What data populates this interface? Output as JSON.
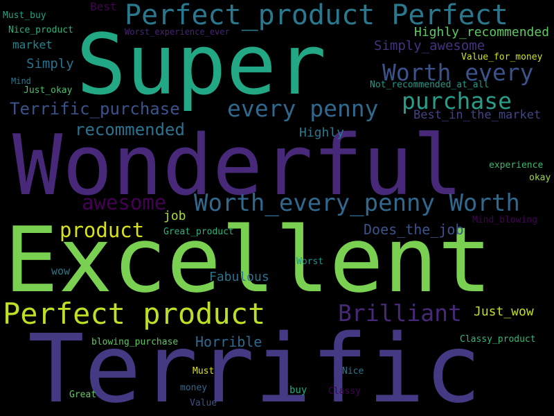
{
  "words": [
    {
      "text": "Super",
      "color": "#22a884"
    },
    {
      "text": "Wonderful",
      "color": "#482878"
    },
    {
      "text": "Excellent",
      "color": "#7ad151"
    },
    {
      "text": "Terrific",
      "color": "#443983"
    },
    {
      "text": "Perfect_product Perfect",
      "color": "#2a788e"
    },
    {
      "text": "Perfect product",
      "color": "#bddf26"
    },
    {
      "text": "Worth_every_penny Worth",
      "color": "#31688e"
    },
    {
      "text": "Worth every",
      "color": "#3b528b"
    },
    {
      "text": "every penny",
      "color": "#31688e"
    },
    {
      "text": "purchase",
      "color": "#2a9d8a"
    },
    {
      "text": "Brilliant",
      "color": "#482878"
    },
    {
      "text": "awesome",
      "color": "#440154"
    },
    {
      "text": "product",
      "color": "#d8e219"
    },
    {
      "text": "Terrific_purchase",
      "color": "#3b528b"
    },
    {
      "text": "recommended",
      "color": "#2c728e"
    },
    {
      "text": "Highly_recommended",
      "color": "#5ec962"
    },
    {
      "text": "Simply_awesome",
      "color": "#46327e"
    },
    {
      "text": "Best_in_the_market",
      "color": "#414487"
    },
    {
      "text": "Does_the_job",
      "color": "#3b528b"
    },
    {
      "text": "Just_wow",
      "color": "#c2df23"
    },
    {
      "text": "Horrible",
      "color": "#31688e"
    },
    {
      "text": "Fabulous",
      "color": "#2c728e"
    },
    {
      "text": "Highly",
      "color": "#2a788e"
    },
    {
      "text": "job",
      "color": "#aadc32"
    },
    {
      "text": "Simply",
      "color": "#2c728e"
    },
    {
      "text": "market",
      "color": "#25858e"
    },
    {
      "text": "Nice_product",
      "color": "#2db27d"
    },
    {
      "text": "Must_buy",
      "color": "#20a486"
    },
    {
      "text": "Best",
      "color": "#440154"
    },
    {
      "text": "Worst_experience_ever",
      "color": "#482475"
    },
    {
      "text": "Mind",
      "color": "#2a788e"
    },
    {
      "text": "Just_okay",
      "color": "#4ac16d"
    },
    {
      "text": "Value_for_money",
      "color": "#d2e21b"
    },
    {
      "text": "Not_recommended_at_all",
      "color": "#1e9b8a"
    },
    {
      "text": "experience",
      "color": "#3bbb75"
    },
    {
      "text": "okay",
      "color": "#9fda3a"
    },
    {
      "text": "Great_product",
      "color": "#2db27d"
    },
    {
      "text": "Mind_blowing",
      "color": "#440154"
    },
    {
      "text": "Worst",
      "color": "#21918c"
    },
    {
      "text": "wow",
      "color": "#2a788e"
    },
    {
      "text": "blowing_purchase",
      "color": "#5ec962"
    },
    {
      "text": "Classy_product",
      "color": "#35b779"
    },
    {
      "text": "Must",
      "color": "#dde318"
    },
    {
      "text": "Nice",
      "color": "#2a788e"
    },
    {
      "text": "Great",
      "color": "#65cb5e"
    },
    {
      "text": "money",
      "color": "#31688e"
    },
    {
      "text": "buy",
      "color": "#22a884"
    },
    {
      "text": "Classy",
      "color": "#440154"
    },
    {
      "text": "Value",
      "color": "#3b528b"
    }
  ]
}
